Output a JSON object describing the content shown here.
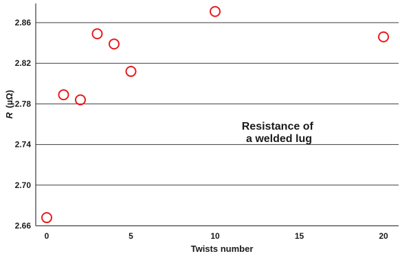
{
  "chart_data": {
    "type": "scatter",
    "title": "",
    "xlabel": "Twists number",
    "ylabel_symbol": "R",
    "ylabel_unit": "(µΩ)",
    "xlim": [
      0,
      20
    ],
    "ylim": [
      2.66,
      2.87
    ],
    "x_ticks": [
      0,
      5,
      10,
      15,
      20
    ],
    "x_tick_labels": [
      "0",
      "5",
      "10",
      "15",
      "20"
    ],
    "y_ticks": [
      2.66,
      2.7,
      2.74,
      2.78,
      2.82,
      2.86
    ],
    "y_tick_labels": [
      "2.66",
      "2.70",
      "2.74",
      "2.78",
      "2.82",
      "2.86"
    ],
    "grid": "horizontal",
    "marker": "open-circle",
    "marker_color": "#e8191b",
    "series": [
      {
        "points": [
          {
            "x": 0,
            "y": 2.668
          },
          {
            "x": 1,
            "y": 2.789
          },
          {
            "x": 2,
            "y": 2.784
          },
          {
            "x": 3,
            "y": 2.849
          },
          {
            "x": 4,
            "y": 2.839
          },
          {
            "x": 5,
            "y": 2.812
          },
          {
            "x": 10,
            "y": 2.871
          },
          {
            "x": 20,
            "y": 2.846
          }
        ]
      }
    ],
    "annotation": {
      "line1": "Resistance of",
      "line2": "a welded lug"
    }
  }
}
